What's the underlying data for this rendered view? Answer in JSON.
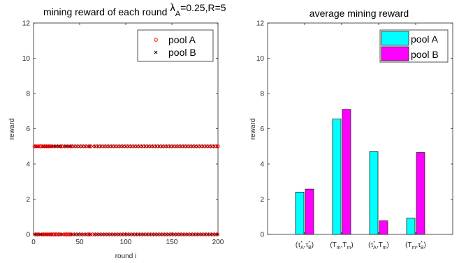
{
  "chart_data": [
    {
      "type": "scatter",
      "title_main": "mining reward of each round ",
      "title_lambda": "λ",
      "title_sub": "A",
      "title_rest": "=0.25,R=5",
      "xlabel": "round i",
      "ylabel": "reward",
      "xlim": [
        0,
        200
      ],
      "ylim": [
        0,
        12
      ],
      "xticks": [
        0,
        50,
        100,
        150,
        200
      ],
      "yticks": [
        0,
        2,
        4,
        6,
        8,
        10,
        12
      ],
      "grid": false,
      "legend_position": "top-right",
      "series": [
        {
          "name": "pool A",
          "marker": "circle",
          "color": "#ff0000",
          "points_at_5": [
            1,
            3,
            5,
            7,
            8,
            10,
            12,
            14,
            16,
            18,
            20,
            23,
            26,
            29,
            31,
            34,
            37,
            40,
            42,
            45,
            48,
            51,
            54,
            57,
            60,
            62,
            66,
            69,
            72,
            75,
            78,
            81,
            84,
            87,
            90,
            93,
            96,
            99,
            102,
            105,
            108,
            111,
            114,
            117,
            120,
            123,
            126,
            129,
            132,
            135,
            138,
            141,
            144,
            147,
            150,
            153,
            156,
            159,
            162,
            165,
            168,
            171,
            174,
            177,
            180,
            183,
            186,
            189,
            192,
            195,
            198,
            200
          ],
          "points_at_0": [
            2,
            4,
            6,
            9,
            11,
            13,
            15,
            17,
            19,
            21,
            22,
            24,
            25,
            27,
            28,
            30,
            33,
            35,
            36,
            38,
            39,
            41,
            44,
            47,
            50,
            53,
            56,
            59,
            61,
            64,
            67,
            70,
            73,
            76,
            79,
            82,
            85,
            88,
            91,
            94,
            97,
            100,
            103,
            106,
            109,
            112,
            115,
            118,
            121,
            124,
            127,
            130,
            133,
            136,
            139,
            142,
            145,
            148,
            151,
            154,
            157,
            160,
            163,
            166,
            169,
            172,
            175,
            178,
            181,
            184,
            187,
            190,
            193,
            196,
            199
          ]
        },
        {
          "name": "pool B",
          "marker": "x",
          "color": "#000000",
          "points_at_5": [
            2,
            4,
            6,
            9,
            11,
            13,
            15,
            17,
            19,
            21,
            22,
            24,
            25,
            27,
            28,
            30,
            33,
            35,
            36,
            38,
            39,
            41,
            44,
            47,
            50,
            53,
            56,
            59,
            61,
            64,
            67,
            70,
            73,
            76,
            79,
            82,
            85,
            88,
            91,
            94,
            97,
            100,
            103,
            106,
            109,
            112,
            115,
            118,
            121,
            124,
            127,
            130,
            133,
            136,
            139,
            142,
            145,
            148,
            151,
            154,
            157,
            160,
            163,
            166,
            169,
            172,
            175,
            178,
            181,
            184,
            187,
            190,
            193,
            196,
            199
          ],
          "points_at_0": [
            1,
            3,
            5,
            7,
            8,
            10,
            12,
            14,
            16,
            18,
            20,
            23,
            26,
            29,
            31,
            34,
            37,
            40,
            42,
            45,
            48,
            51,
            54,
            57,
            60,
            62,
            66,
            69,
            72,
            75,
            78,
            81,
            84,
            87,
            90,
            93,
            96,
            99,
            102,
            105,
            108,
            111,
            114,
            117,
            120,
            123,
            126,
            129,
            132,
            135,
            138,
            141,
            144,
            147,
            150,
            153,
            156,
            159,
            162,
            165,
            168,
            171,
            174,
            177,
            180,
            183,
            186,
            189,
            192,
            195,
            198,
            200
          ]
        }
      ]
    },
    {
      "type": "bar",
      "title": "average mining reward",
      "ylabel": "reward",
      "ylim": [
        0,
        12
      ],
      "yticks": [
        0,
        2,
        4,
        6,
        8,
        10,
        12
      ],
      "grid": false,
      "legend_position": "top-right",
      "categories": [
        {
          "open": "(",
          "a": "τ",
          "a_sup": "*",
          "a_sub": "A",
          "sep": ",",
          "b": "τ",
          "b_sup": "*",
          "b_sub": "B",
          "close": ")"
        },
        {
          "open": "(",
          "a": "T",
          "a_sup": "",
          "a_sub": "m",
          "sep": ",",
          "b": "T",
          "b_sup": "",
          "b_sub": "m",
          "close": ")"
        },
        {
          "open": "(",
          "a": "τ",
          "a_sup": "*",
          "a_sub": "A",
          "sep": ",",
          "b": "T",
          "b_sup": "",
          "b_sub": "m",
          "close": ")"
        },
        {
          "open": "(",
          "a": "T",
          "a_sup": "",
          "a_sub": "m",
          "sep": ",",
          "b": "τ",
          "b_sup": "*",
          "b_sub": "B",
          "close": ")"
        }
      ],
      "series": [
        {
          "name": "pool A",
          "color": "#00ffff",
          "values": [
            2.4,
            6.55,
            4.7,
            0.92
          ]
        },
        {
          "name": "pool B",
          "color": "#ff00ff",
          "values": [
            2.57,
            7.1,
            0.77,
            4.65
          ]
        }
      ]
    }
  ]
}
